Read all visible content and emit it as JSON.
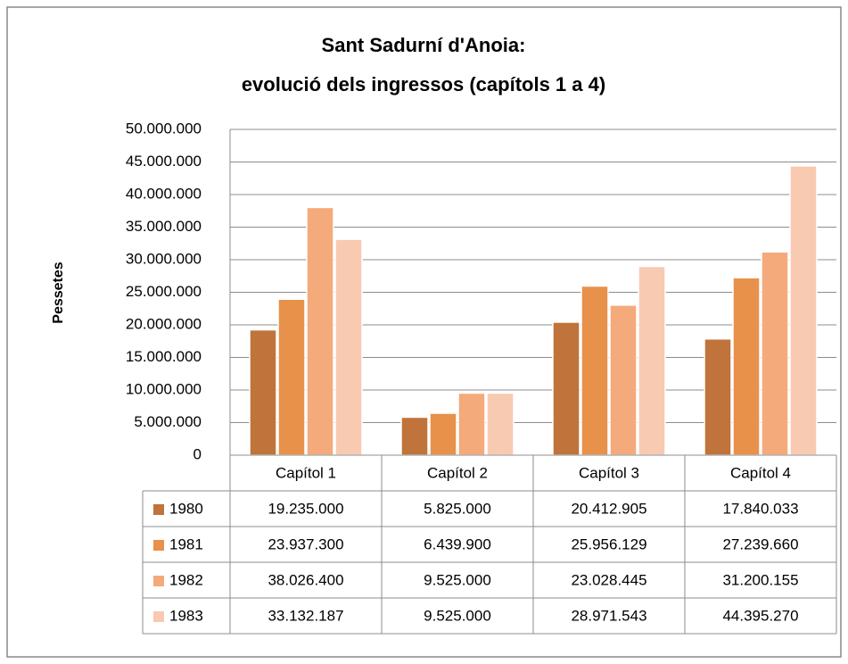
{
  "chart_data": {
    "type": "bar",
    "title": [
      "Sant Sadurní d'Anoia:",
      "evolució dels ingressos (capítols 1 a 4)"
    ],
    "y_label": "Pessetes",
    "categories": [
      "Capítol 1",
      "Capítol 2",
      "Capítol 3",
      "Capítol 4"
    ],
    "series": [
      {
        "name": "1980",
        "color": "#c0733a",
        "values": [
          19235000,
          5825000,
          20412905,
          17840033
        ],
        "value_labels": [
          "19.235.000",
          "5.825.000",
          "20.412.905",
          "17.840.033"
        ]
      },
      {
        "name": "1981",
        "color": "#e8914a",
        "values": [
          23937300,
          6439900,
          25956129,
          27239660
        ],
        "value_labels": [
          "23.937.300",
          "6.439.900",
          "25.956.129",
          "27.239.660"
        ]
      },
      {
        "name": "1982",
        "color": "#f4aa7b",
        "values": [
          38026400,
          9525000,
          23028445,
          31200155
        ],
        "value_labels": [
          "38.026.400",
          "9.525.000",
          "23.028.445",
          "31.200.155"
        ]
      },
      {
        "name": "1983",
        "color": "#f8cab2",
        "values": [
          33132187,
          9525000,
          28971543,
          44395270
        ],
        "value_labels": [
          "33.132.187",
          "9.525.000",
          "28.971.543",
          "44.395.270"
        ]
      }
    ],
    "ylim": [
      0,
      50000000
    ],
    "yticks": [
      0,
      {
        "value": 5000000,
        "label": "5.000.000"
      },
      {
        "value": 10000000,
        "label": "10.000.000"
      },
      {
        "value": 15000000,
        "label": "15.000.000"
      },
      {
        "value": 20000000,
        "label": "20.000.000"
      },
      {
        "value": 25000000,
        "label": "25.000.000"
      },
      {
        "value": 30000000,
        "label": "30.000.000"
      },
      {
        "value": 35000000,
        "label": "35.000.000"
      },
      {
        "value": 40000000,
        "label": "40.000.000"
      },
      {
        "value": 45000000,
        "label": "45.000.000"
      },
      {
        "value": 50000000,
        "label": "50.000.000"
      }
    ],
    "grid": true,
    "data_table": true
  }
}
